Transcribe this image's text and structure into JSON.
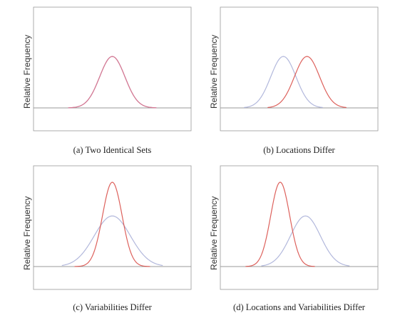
{
  "chart_data": [
    {
      "type": "line",
      "title": "(a) Two Identical Sets",
      "ylabel": "Relative Frequency",
      "xlabel": "",
      "grid": false,
      "xlim": [
        0,
        10
      ],
      "ylim": [
        0,
        1
      ],
      "series": [
        {
          "color": "#b46bc0",
          "mean": 5.0,
          "sd": 0.8,
          "peak": 1.0,
          "range": [
            2.2,
            7.8
          ]
        },
        {
          "color": "#d87a8a",
          "mean": 5.0,
          "sd": 0.8,
          "peak": 1.0,
          "range": [
            2.2,
            7.8
          ]
        }
      ]
    },
    {
      "type": "line",
      "title": "(b) Locations Differ",
      "ylabel": "Relative Frequency",
      "xlabel": "",
      "grid": false,
      "xlim": [
        0,
        10
      ],
      "ylim": [
        0,
        1
      ],
      "series": [
        {
          "color": "#aab0d8",
          "mean": 4.0,
          "sd": 0.8,
          "peak": 1.0,
          "range": [
            1.5,
            6.5
          ]
        },
        {
          "color": "#d9504a",
          "mean": 5.5,
          "sd": 0.8,
          "peak": 1.0,
          "range": [
            3.0,
            8.0
          ]
        }
      ]
    },
    {
      "type": "line",
      "title": "(c) Variabilities Differ",
      "ylabel": "Relative Frequency",
      "xlabel": "",
      "grid": false,
      "xlim": [
        0,
        10
      ],
      "ylim": [
        0,
        1
      ],
      "series": [
        {
          "color": "#aab0d8",
          "mean": 5.0,
          "sd": 1.15,
          "peak": 0.6,
          "range": [
            1.8,
            8.2
          ]
        },
        {
          "color": "#d9504a",
          "mean": 5.0,
          "sd": 0.62,
          "peak": 1.0,
          "range": [
            2.6,
            7.4
          ]
        }
      ]
    },
    {
      "type": "line",
      "title": "(d) Locations and Variabilities Differ",
      "ylabel": "Relative Frequency",
      "xlabel": "",
      "grid": false,
      "xlim": [
        0,
        10
      ],
      "ylim": [
        0,
        1
      ],
      "series": [
        {
          "color": "#aab0d8",
          "mean": 5.4,
          "sd": 0.95,
          "peak": 0.6,
          "range": [
            2.6,
            8.2
          ]
        },
        {
          "color": "#d9504a",
          "mean": 3.8,
          "sd": 0.6,
          "peak": 1.0,
          "range": [
            1.6,
            6.0
          ]
        }
      ]
    }
  ]
}
